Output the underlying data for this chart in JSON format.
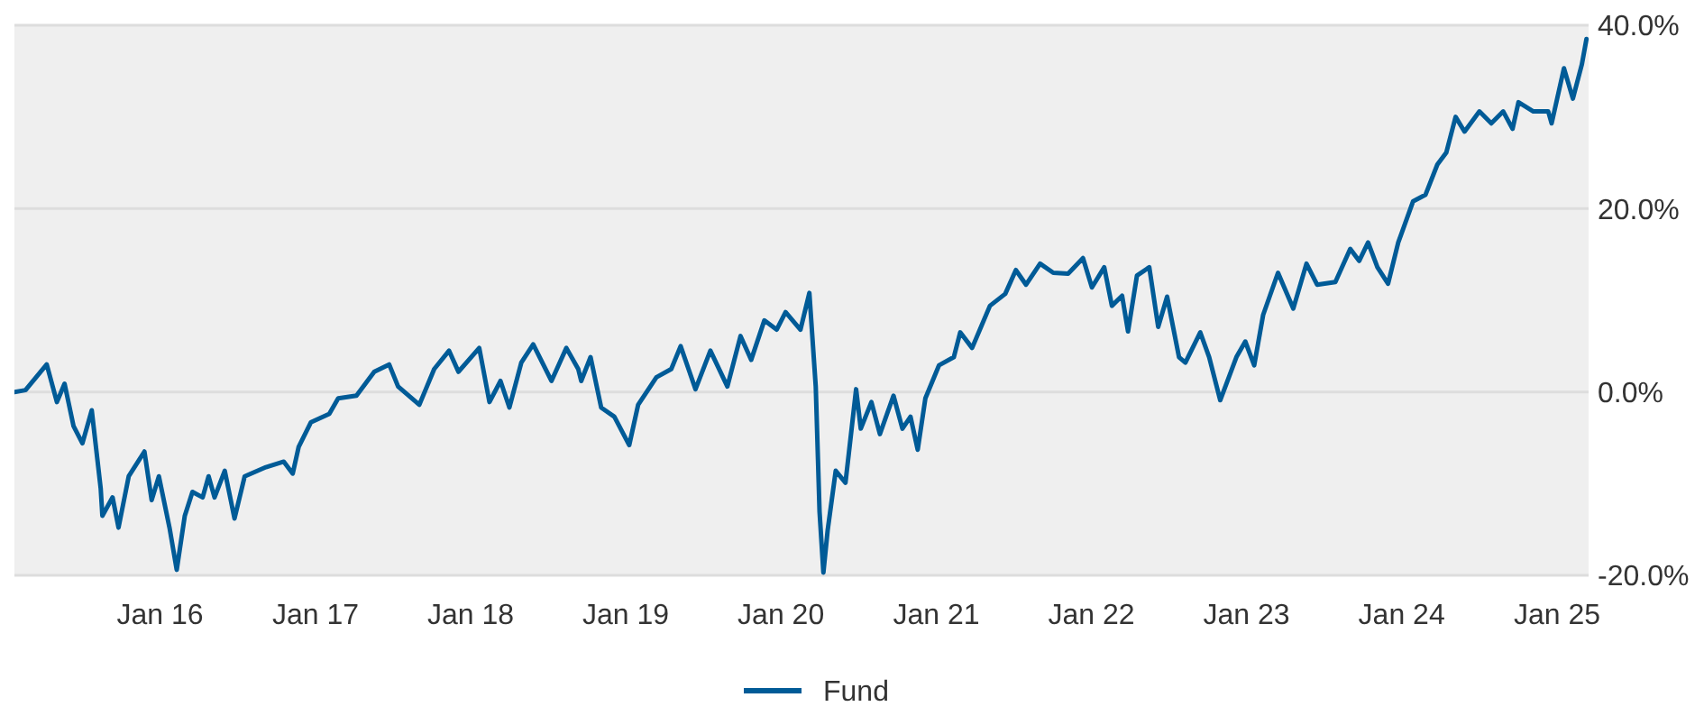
{
  "chart_data": {
    "type": "line",
    "xlim": [
      "2015-01-23",
      "2025-03-16"
    ],
    "ylim": [
      -20,
      40
    ],
    "xticks": [
      {
        "value": "2016-01-01",
        "label": "Jan 16"
      },
      {
        "value": "2017-01-01",
        "label": "Jan 17"
      },
      {
        "value": "2018-01-01",
        "label": "Jan 18"
      },
      {
        "value": "2019-01-01",
        "label": "Jan 19"
      },
      {
        "value": "2020-01-01",
        "label": "Jan 20"
      },
      {
        "value": "2021-01-01",
        "label": "Jan 21"
      },
      {
        "value": "2022-01-01",
        "label": "Jan 22"
      },
      {
        "value": "2023-01-01",
        "label": "Jan 23"
      },
      {
        "value": "2024-01-01",
        "label": "Jan 24"
      },
      {
        "value": "2025-01-01",
        "label": "Jan 25"
      }
    ],
    "yticks": [
      {
        "value": -20,
        "label": "-20.0%"
      },
      {
        "value": 0,
        "label": "0.0%"
      },
      {
        "value": 20,
        "label": "20.0%"
      },
      {
        "value": 40,
        "label": "40.0%"
      }
    ],
    "grid": "y",
    "legend": "bottom",
    "series": [
      {
        "name": "Fund",
        "color": "#005b97",
        "x": [
          "2015-01-23",
          "2015-02-18",
          "2015-04-09",
          "2015-05-03",
          "2015-05-21",
          "2015-06-11",
          "2015-07-02",
          "2015-07-24",
          "2015-08-14",
          "2015-08-18",
          "2015-09-11",
          "2015-09-25",
          "2015-10-19",
          "2015-11-25",
          "2015-12-12",
          "2015-12-29",
          "2016-01-23",
          "2016-02-09",
          "2016-02-28",
          "2016-03-17",
          "2016-04-10",
          "2016-04-24",
          "2016-05-08",
          "2016-06-01",
          "2016-06-24",
          "2016-07-18",
          "2016-09-06",
          "2016-10-18",
          "2016-11-08",
          "2016-11-22",
          "2016-12-21",
          "2017-02-02",
          "2017-02-23",
          "2017-04-07",
          "2017-05-19",
          "2017-06-23",
          "2017-07-14",
          "2017-09-02",
          "2017-10-07",
          "2017-11-11",
          "2017-12-03",
          "2018-01-21",
          "2018-02-14",
          "2018-03-12",
          "2018-04-02",
          "2018-04-30",
          "2018-05-28",
          "2018-07-10",
          "2018-08-14",
          "2018-09-11",
          "2018-09-18",
          "2018-10-10",
          "2018-11-04",
          "2018-12-05",
          "2019-01-09",
          "2019-01-30",
          "2019-03-14",
          "2019-04-18",
          "2019-05-10",
          "2019-06-14",
          "2019-07-19",
          "2019-08-28",
          "2019-09-28",
          "2019-10-23",
          "2019-11-23",
          "2019-12-22",
          "2020-01-12",
          "2020-02-16",
          "2020-03-08",
          "2020-03-23",
          "2020-04-01",
          "2020-04-10",
          "2020-04-20",
          "2020-05-09",
          "2020-06-01",
          "2020-06-26",
          "2020-07-07",
          "2020-08-01",
          "2020-08-21",
          "2020-09-22",
          "2020-10-13",
          "2020-11-01",
          "2020-11-18",
          "2020-12-06",
          "2021-01-07",
          "2021-02-11",
          "2021-02-26",
          "2021-03-26",
          "2021-04-16",
          "2021-05-07",
          "2021-06-12",
          "2021-07-07",
          "2021-07-31",
          "2021-09-02",
          "2021-10-03",
          "2021-11-07",
          "2021-12-12",
          "2022-01-02",
          "2022-01-31",
          "2022-02-18",
          "2022-03-14",
          "2022-03-28",
          "2022-04-18",
          "2022-05-17",
          "2022-06-07",
          "2022-06-28",
          "2022-07-26",
          "2022-08-10",
          "2022-09-14",
          "2022-10-05",
          "2022-10-31",
          "2022-12-08",
          "2022-12-29",
          "2023-01-19",
          "2023-02-09",
          "2023-03-16",
          "2023-04-21",
          "2023-05-22",
          "2023-06-16",
          "2023-07-29",
          "2023-09-02",
          "2023-09-23",
          "2023-10-14",
          "2023-11-05",
          "2023-11-30",
          "2023-12-24",
          "2024-01-28",
          "2024-02-26",
          "2024-03-25",
          "2024-04-15",
          "2024-05-07",
          "2024-05-28",
          "2024-07-02",
          "2024-07-30",
          "2024-08-27",
          "2024-09-18",
          "2024-10-02",
          "2024-11-06",
          "2024-12-11",
          "2024-12-19",
          "2025-01-17",
          "2025-02-07",
          "2025-02-28",
          "2025-03-11"
        ],
        "values": [
          0,
          0.2,
          3,
          -1.1,
          0.9,
          -3.7,
          -5.6,
          -2,
          -10.5,
          -13.5,
          -11.5,
          -14.8,
          -9.2,
          -6.5,
          -11.8,
          -9.2,
          -14.8,
          -19.4,
          -13.5,
          -10.9,
          -11.5,
          -9.2,
          -11.5,
          -8.6,
          -13.8,
          -9.2,
          -8.2,
          -7.6,
          -8.9,
          -6,
          -3.3,
          -2.4,
          -0.7,
          -0.4,
          2.2,
          3,
          0.6,
          -1.4,
          2.5,
          4.5,
          2.2,
          4.8,
          -1.1,
          1.2,
          -1.7,
          3.2,
          5.2,
          1.2,
          4.8,
          2.5,
          1.2,
          3.8,
          -1.7,
          -2.7,
          -5.8,
          -1.4,
          1.6,
          2.5,
          5,
          0.3,
          4.5,
          0.6,
          6.1,
          3.5,
          7.8,
          6.8,
          8.7,
          6.8,
          10.8,
          0.6,
          -13.1,
          -19.7,
          -15.1,
          -8.6,
          -9.9,
          0.3,
          -4,
          -1.1,
          -4.6,
          -0.4,
          -4,
          -2.7,
          -6.3,
          -0.7,
          2.9,
          3.8,
          6.5,
          4.8,
          7.1,
          9.4,
          10.7,
          13.3,
          11.7,
          14,
          13,
          12.9,
          14.6,
          11.4,
          13.6,
          9.4,
          10.5,
          6.6,
          12.7,
          13.6,
          7.1,
          10.4,
          3.8,
          3.2,
          6.5,
          3.8,
          -0.9,
          3.8,
          5.5,
          2.9,
          8.4,
          13,
          9.1,
          14,
          11.7,
          12,
          15.6,
          14.3,
          16.3,
          13.6,
          11.8,
          16.3,
          20.8,
          21.5,
          24.8,
          26.1,
          30,
          28.4,
          30.6,
          29.3,
          30.6,
          28.7,
          31.6,
          30.6,
          30.6,
          29.3,
          35.3,
          32,
          35.7,
          38.5
        ]
      }
    ]
  }
}
